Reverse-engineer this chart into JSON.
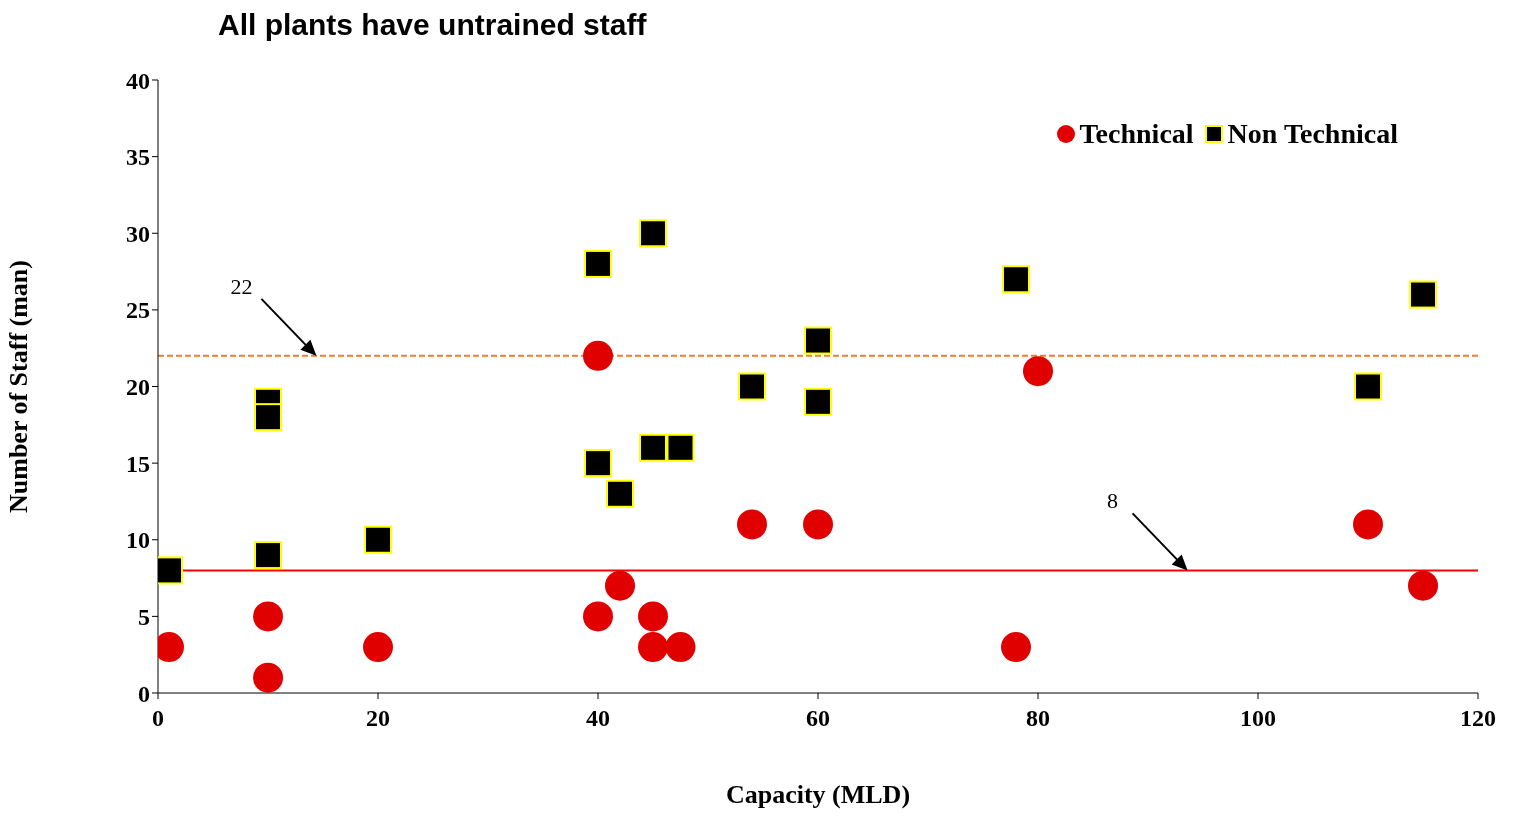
{
  "chart_data": {
    "type": "scatter",
    "title": "All plants have untrained staff",
    "xlabel": "Capacity (MLD)",
    "ylabel": "Number of Staff (man)",
    "xlim": [
      0,
      120
    ],
    "xticks": [
      0,
      20,
      40,
      60,
      80,
      100,
      120
    ],
    "ylim": [
      0,
      40
    ],
    "yticks": [
      0,
      5,
      10,
      15,
      20,
      25,
      30,
      35,
      40
    ],
    "legend": "top right",
    "series": [
      {
        "name": "Technical",
        "color": "#e00000",
        "marker": "circle",
        "x": [
          1,
          10,
          10,
          20,
          40,
          40,
          42,
          45,
          45,
          47.5,
          54,
          60,
          78,
          80,
          110,
          115
        ],
        "values": [
          3,
          5,
          1,
          3,
          22,
          5,
          7,
          5,
          3,
          3,
          11,
          11,
          3,
          21,
          11,
          7
        ]
      },
      {
        "name": "Non Technical",
        "color": "#000000",
        "marker": "square",
        "x": [
          1,
          10,
          10,
          10,
          20,
          40,
          40,
          42,
          45,
          45,
          47.5,
          54,
          60,
          60,
          78,
          110,
          115
        ],
        "values": [
          8,
          19,
          18,
          9,
          10,
          28,
          15,
          13,
          30,
          16,
          16,
          20,
          23,
          19,
          27,
          20,
          26
        ]
      }
    ],
    "ref_lines": [
      {
        "axis": "y",
        "value": 22,
        "label": "22",
        "color": "#ed7d31",
        "line_style": "dashed"
      },
      {
        "axis": "y",
        "value": 8,
        "label": "8",
        "color": "#ff0000",
        "line_style": "solid"
      }
    ]
  }
}
